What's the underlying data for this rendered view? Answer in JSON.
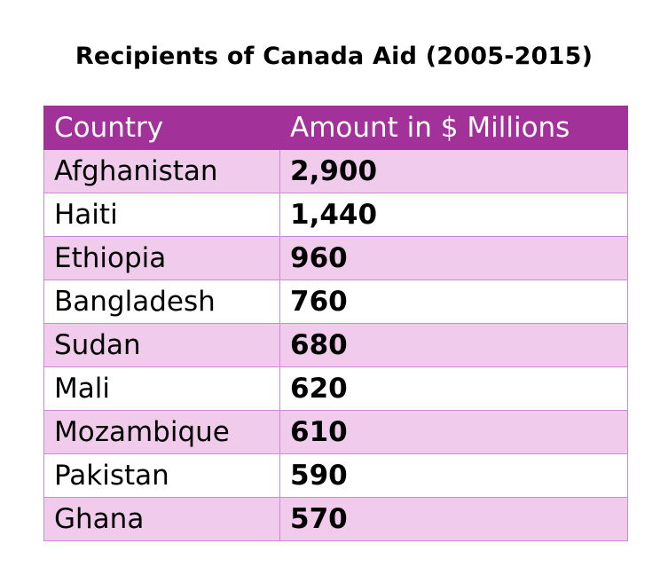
{
  "title": "Recipients of Canada Aid (2005-2015)",
  "chart_data": {
    "type": "table",
    "title": "Recipients of Canada Aid (2005-2015)",
    "columns": [
      "Country",
      "Amount in $ Millions"
    ],
    "rows": [
      {
        "country": "Afghanistan",
        "amount": "2,900"
      },
      {
        "country": "Haiti",
        "amount": "1,440"
      },
      {
        "country": "Ethiopia",
        "amount": "960"
      },
      {
        "country": "Bangladesh",
        "amount": "760"
      },
      {
        "country": "Sudan",
        "amount": "680"
      },
      {
        "country": "Mali",
        "amount": "620"
      },
      {
        "country": "Mozambique",
        "amount": "610"
      },
      {
        "country": "Pakistan",
        "amount": "590"
      },
      {
        "country": "Ghana",
        "amount": "570"
      }
    ]
  },
  "colors": {
    "header_bg": "#a3319a",
    "header_text": "#ffffff",
    "band_row_bg": "#f1cbec",
    "plain_row_bg": "#ffffff",
    "border": "#c98bd1"
  }
}
